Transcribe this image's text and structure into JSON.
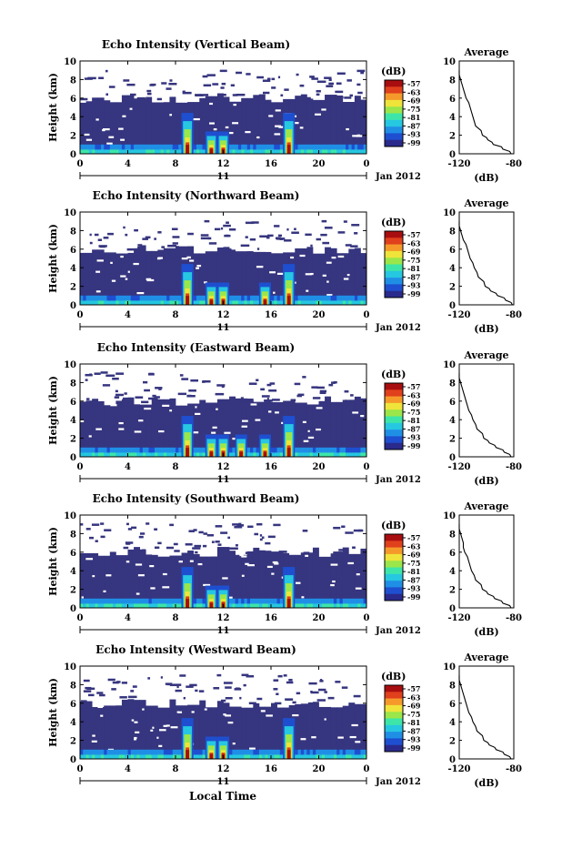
{
  "figure": {
    "xlabel": "Local Time",
    "date_label": "Jan 2012",
    "day_label": "11",
    "ylabel": "Height (km)",
    "colorbar_title": "(dB)",
    "avg_title": "Average",
    "avg_xlabel": "(dB)"
  },
  "colors": {
    "background_echo": "#36357f",
    "colormap": [
      "#2a2a8c",
      "#1e4fd0",
      "#1f8fe6",
      "#26c7e0",
      "#3de6a8",
      "#9be64a",
      "#f0e43a",
      "#f59a2a",
      "#e0401c",
      "#a80e10"
    ]
  },
  "chart_data": [
    {
      "type": "heatmap",
      "title": "Echo Intensity (Vertical Beam)",
      "xlabel": "Local Time",
      "ylabel": "Height (km)",
      "xlim": [
        0,
        24
      ],
      "ylim": [
        0,
        10
      ],
      "xticks": [
        "0",
        "4",
        "8",
        "12",
        "16",
        "20",
        "0"
      ],
      "yticks": [
        "0",
        "2",
        "4",
        "6",
        "8",
        "10"
      ],
      "colorbar": {
        "label": "(dB)",
        "ticks": [
          "-57",
          "-63",
          "-69",
          "-75",
          "-81",
          "-87",
          "-93",
          "-99"
        ]
      },
      "convective_cells_hours": [
        9,
        11,
        12,
        17.5
      ],
      "average_profile": {
        "title": "Average",
        "xlabel": "(dB)",
        "xticks": [
          "-120",
          "-80"
        ],
        "yticks": [
          "0",
          "2",
          "4",
          "6",
          "8",
          "10"
        ],
        "xlim": [
          -120,
          -80
        ],
        "height_km": [
          0,
          0.5,
          1,
          1.5,
          2,
          3,
          4,
          5,
          6,
          7,
          8,
          9
        ],
        "value_db": [
          -82,
          -88,
          -95,
          -99,
          -103,
          -108,
          -110,
          -112,
          -115,
          -117,
          -119,
          -120
        ]
      }
    },
    {
      "type": "heatmap",
      "title": "Echo Intensity (Northward Beam)",
      "xlabel": "Local Time",
      "ylabel": "Height (km)",
      "xlim": [
        0,
        24
      ],
      "ylim": [
        0,
        10
      ],
      "xticks": [
        "0",
        "4",
        "8",
        "12",
        "16",
        "20",
        "0"
      ],
      "yticks": [
        "0",
        "2",
        "4",
        "6",
        "8",
        "10"
      ],
      "colorbar": {
        "label": "(dB)",
        "ticks": [
          "-57",
          "-63",
          "-69",
          "-75",
          "-81",
          "-87",
          "-93",
          "-99"
        ]
      },
      "convective_cells_hours": [
        9,
        11,
        12,
        15.5,
        17.5
      ],
      "average_profile": {
        "title": "Average",
        "xlabel": "(dB)",
        "xticks": [
          "-120",
          "-80"
        ],
        "yticks": [
          "0",
          "2",
          "4",
          "6",
          "8",
          "10"
        ],
        "xlim": [
          -120,
          -80
        ],
        "height_km": [
          0,
          0.5,
          1,
          1.5,
          2,
          3,
          4,
          5,
          6,
          7,
          8,
          9
        ],
        "value_db": [
          -81,
          -86,
          -92,
          -97,
          -101,
          -106,
          -109,
          -112,
          -114,
          -117,
          -119,
          -120
        ]
      }
    },
    {
      "type": "heatmap",
      "title": "Echo Intensity (Eastward Beam)",
      "xlabel": "Local Time",
      "ylabel": "Height (km)",
      "xlim": [
        0,
        24
      ],
      "ylim": [
        0,
        10
      ],
      "xticks": [
        "0",
        "4",
        "8",
        "12",
        "16",
        "20",
        "0"
      ],
      "yticks": [
        "0",
        "2",
        "4",
        "6",
        "8",
        "10"
      ],
      "colorbar": {
        "label": "(dB)",
        "ticks": [
          "-57",
          "-63",
          "-69",
          "-75",
          "-81",
          "-87",
          "-93",
          "-99"
        ]
      },
      "convective_cells_hours": [
        9,
        11,
        12,
        13.5,
        15.5,
        17.5
      ],
      "average_profile": {
        "title": "Average",
        "xlabel": "(dB)",
        "xticks": [
          "-120",
          "-80"
        ],
        "yticks": [
          "0",
          "2",
          "4",
          "6",
          "8",
          "10"
        ],
        "xlim": [
          -120,
          -80
        ],
        "height_km": [
          0,
          0.5,
          1,
          1.5,
          2,
          3,
          4,
          5,
          6,
          7,
          8,
          9
        ],
        "value_db": [
          -82,
          -87,
          -93,
          -98,
          -102,
          -107,
          -110,
          -113,
          -115,
          -117,
          -119,
          -120
        ]
      }
    },
    {
      "type": "heatmap",
      "title": "Echo Intensity (Southward Beam)",
      "xlabel": "Local Time",
      "ylabel": "Height (km)",
      "xlim": [
        0,
        24
      ],
      "ylim": [
        0,
        10
      ],
      "xticks": [
        "0",
        "4",
        "8",
        "12",
        "16",
        "20",
        "0"
      ],
      "yticks": [
        "0",
        "2",
        "4",
        "6",
        "8",
        "10"
      ],
      "colorbar": {
        "label": "(dB)",
        "ticks": [
          "-57",
          "-63",
          "-69",
          "-75",
          "-81",
          "-87",
          "-93",
          "-99"
        ]
      },
      "convective_cells_hours": [
        9,
        11,
        12,
        17.5
      ],
      "average_profile": {
        "title": "Average",
        "xlabel": "(dB)",
        "xticks": [
          "-120",
          "-80"
        ],
        "yticks": [
          "0",
          "2",
          "4",
          "6",
          "8",
          "10"
        ],
        "xlim": [
          -120,
          -80
        ],
        "height_km": [
          0,
          0.5,
          1,
          1.5,
          2,
          3,
          4,
          5,
          6,
          7,
          8,
          9
        ],
        "value_db": [
          -82,
          -88,
          -94,
          -99,
          -103,
          -108,
          -111,
          -113,
          -116,
          -117,
          -119,
          -120
        ]
      }
    },
    {
      "type": "heatmap",
      "title": "Echo Intensity (Westward Beam)",
      "xlabel": "Local Time",
      "ylabel": "Height (km)",
      "xlim": [
        0,
        24
      ],
      "ylim": [
        0,
        10
      ],
      "xticks": [
        "0",
        "4",
        "8",
        "12",
        "16",
        "20",
        "0"
      ],
      "yticks": [
        "0",
        "2",
        "4",
        "6",
        "8",
        "10"
      ],
      "colorbar": {
        "label": "(dB)",
        "ticks": [
          "-57",
          "-63",
          "-69",
          "-75",
          "-81",
          "-87",
          "-93",
          "-99"
        ]
      },
      "convective_cells_hours": [
        9,
        11,
        12,
        17.5
      ],
      "average_profile": {
        "title": "Average",
        "xlabel": "(dB)",
        "xticks": [
          "-120",
          "-80"
        ],
        "yticks": [
          "0",
          "2",
          "4",
          "6",
          "8",
          "10"
        ],
        "xlim": [
          -120,
          -80
        ],
        "height_km": [
          0,
          0.5,
          1,
          1.5,
          2,
          3,
          4,
          5,
          6,
          7,
          8,
          9
        ],
        "value_db": [
          -82,
          -87,
          -93,
          -98,
          -102,
          -107,
          -110,
          -113,
          -115,
          -117,
          -119,
          -120
        ]
      }
    }
  ]
}
